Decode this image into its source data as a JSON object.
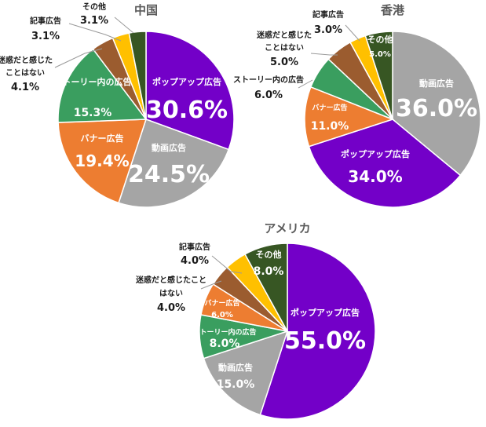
{
  "colors": {
    "popup": "#7300c8",
    "video": "#a5a5a5",
    "banner": "#ed7d31",
    "story": "#3a9e5f",
    "not_annoying": "#9b5c2f",
    "article": "#ffc000",
    "other": "#375623"
  },
  "chart_data": [
    {
      "type": "pie",
      "title": "中国",
      "slices": [
        {
          "key": "popup",
          "label": "ポップアップ広告",
          "value": 30.6,
          "value_label": "30.6%"
        },
        {
          "key": "video",
          "label": "動画広告",
          "value": 24.5,
          "value_label": "24.5%"
        },
        {
          "key": "banner",
          "label": "バナー広告",
          "value": 19.4,
          "value_label": "19.4%"
        },
        {
          "key": "story",
          "label": "ストーリー内の広告",
          "value": 15.3,
          "value_label": "15.3%"
        },
        {
          "key": "not_annoying",
          "label_lines": [
            "迷惑だと感じた",
            "ことはない"
          ],
          "value": 4.1,
          "value_label": "4.1%"
        },
        {
          "key": "article",
          "label": "記事広告",
          "value": 3.1,
          "value_label": "3.1%"
        },
        {
          "key": "other",
          "label": "その他",
          "value": 3.1,
          "value_label": "3.1%"
        }
      ]
    },
    {
      "type": "pie",
      "title": "香港",
      "slices": [
        {
          "key": "video",
          "label": "動画広告",
          "value": 36.0,
          "value_label": "36.0%"
        },
        {
          "key": "popup",
          "label": "ポップアップ広告",
          "value": 34.0,
          "value_label": "34.0%"
        },
        {
          "key": "banner",
          "label": "バナー広告",
          "value": 11.0,
          "value_label": "11.0%"
        },
        {
          "key": "story",
          "label": "ストーリー内の広告",
          "value": 6.0,
          "value_label": "6.0%"
        },
        {
          "key": "not_annoying",
          "label_lines": [
            "迷惑だと感じた",
            "ことはない"
          ],
          "value": 5.0,
          "value_label": "5.0%"
        },
        {
          "key": "article",
          "label": "記事広告",
          "value": 3.0,
          "value_label": "3.0%"
        },
        {
          "key": "other",
          "label": "その他",
          "value": 5.0,
          "value_label": "5.0%"
        }
      ]
    },
    {
      "type": "pie",
      "title": "アメリカ",
      "slices": [
        {
          "key": "popup",
          "label": "ポップアップ広告",
          "value": 55.0,
          "value_label": "55.0%"
        },
        {
          "key": "video",
          "label": "動画広告",
          "value": 15.0,
          "value_label": "15.0%"
        },
        {
          "key": "story",
          "label": "ストーリー内の広告",
          "value": 8.0,
          "value_label": "8.0%"
        },
        {
          "key": "banner",
          "label": "バナー広告",
          "value": 6.0,
          "value_label": "6.0%"
        },
        {
          "key": "not_annoying",
          "label_lines": [
            "迷惑だと感じたこと",
            "はない"
          ],
          "value": 4.0,
          "value_label": "4.0%"
        },
        {
          "key": "article",
          "label": "記事広告",
          "value": 4.0,
          "value_label": "4.0%"
        },
        {
          "key": "other",
          "label": "その他",
          "value": 8.0,
          "value_label": "8.0%"
        }
      ]
    }
  ]
}
